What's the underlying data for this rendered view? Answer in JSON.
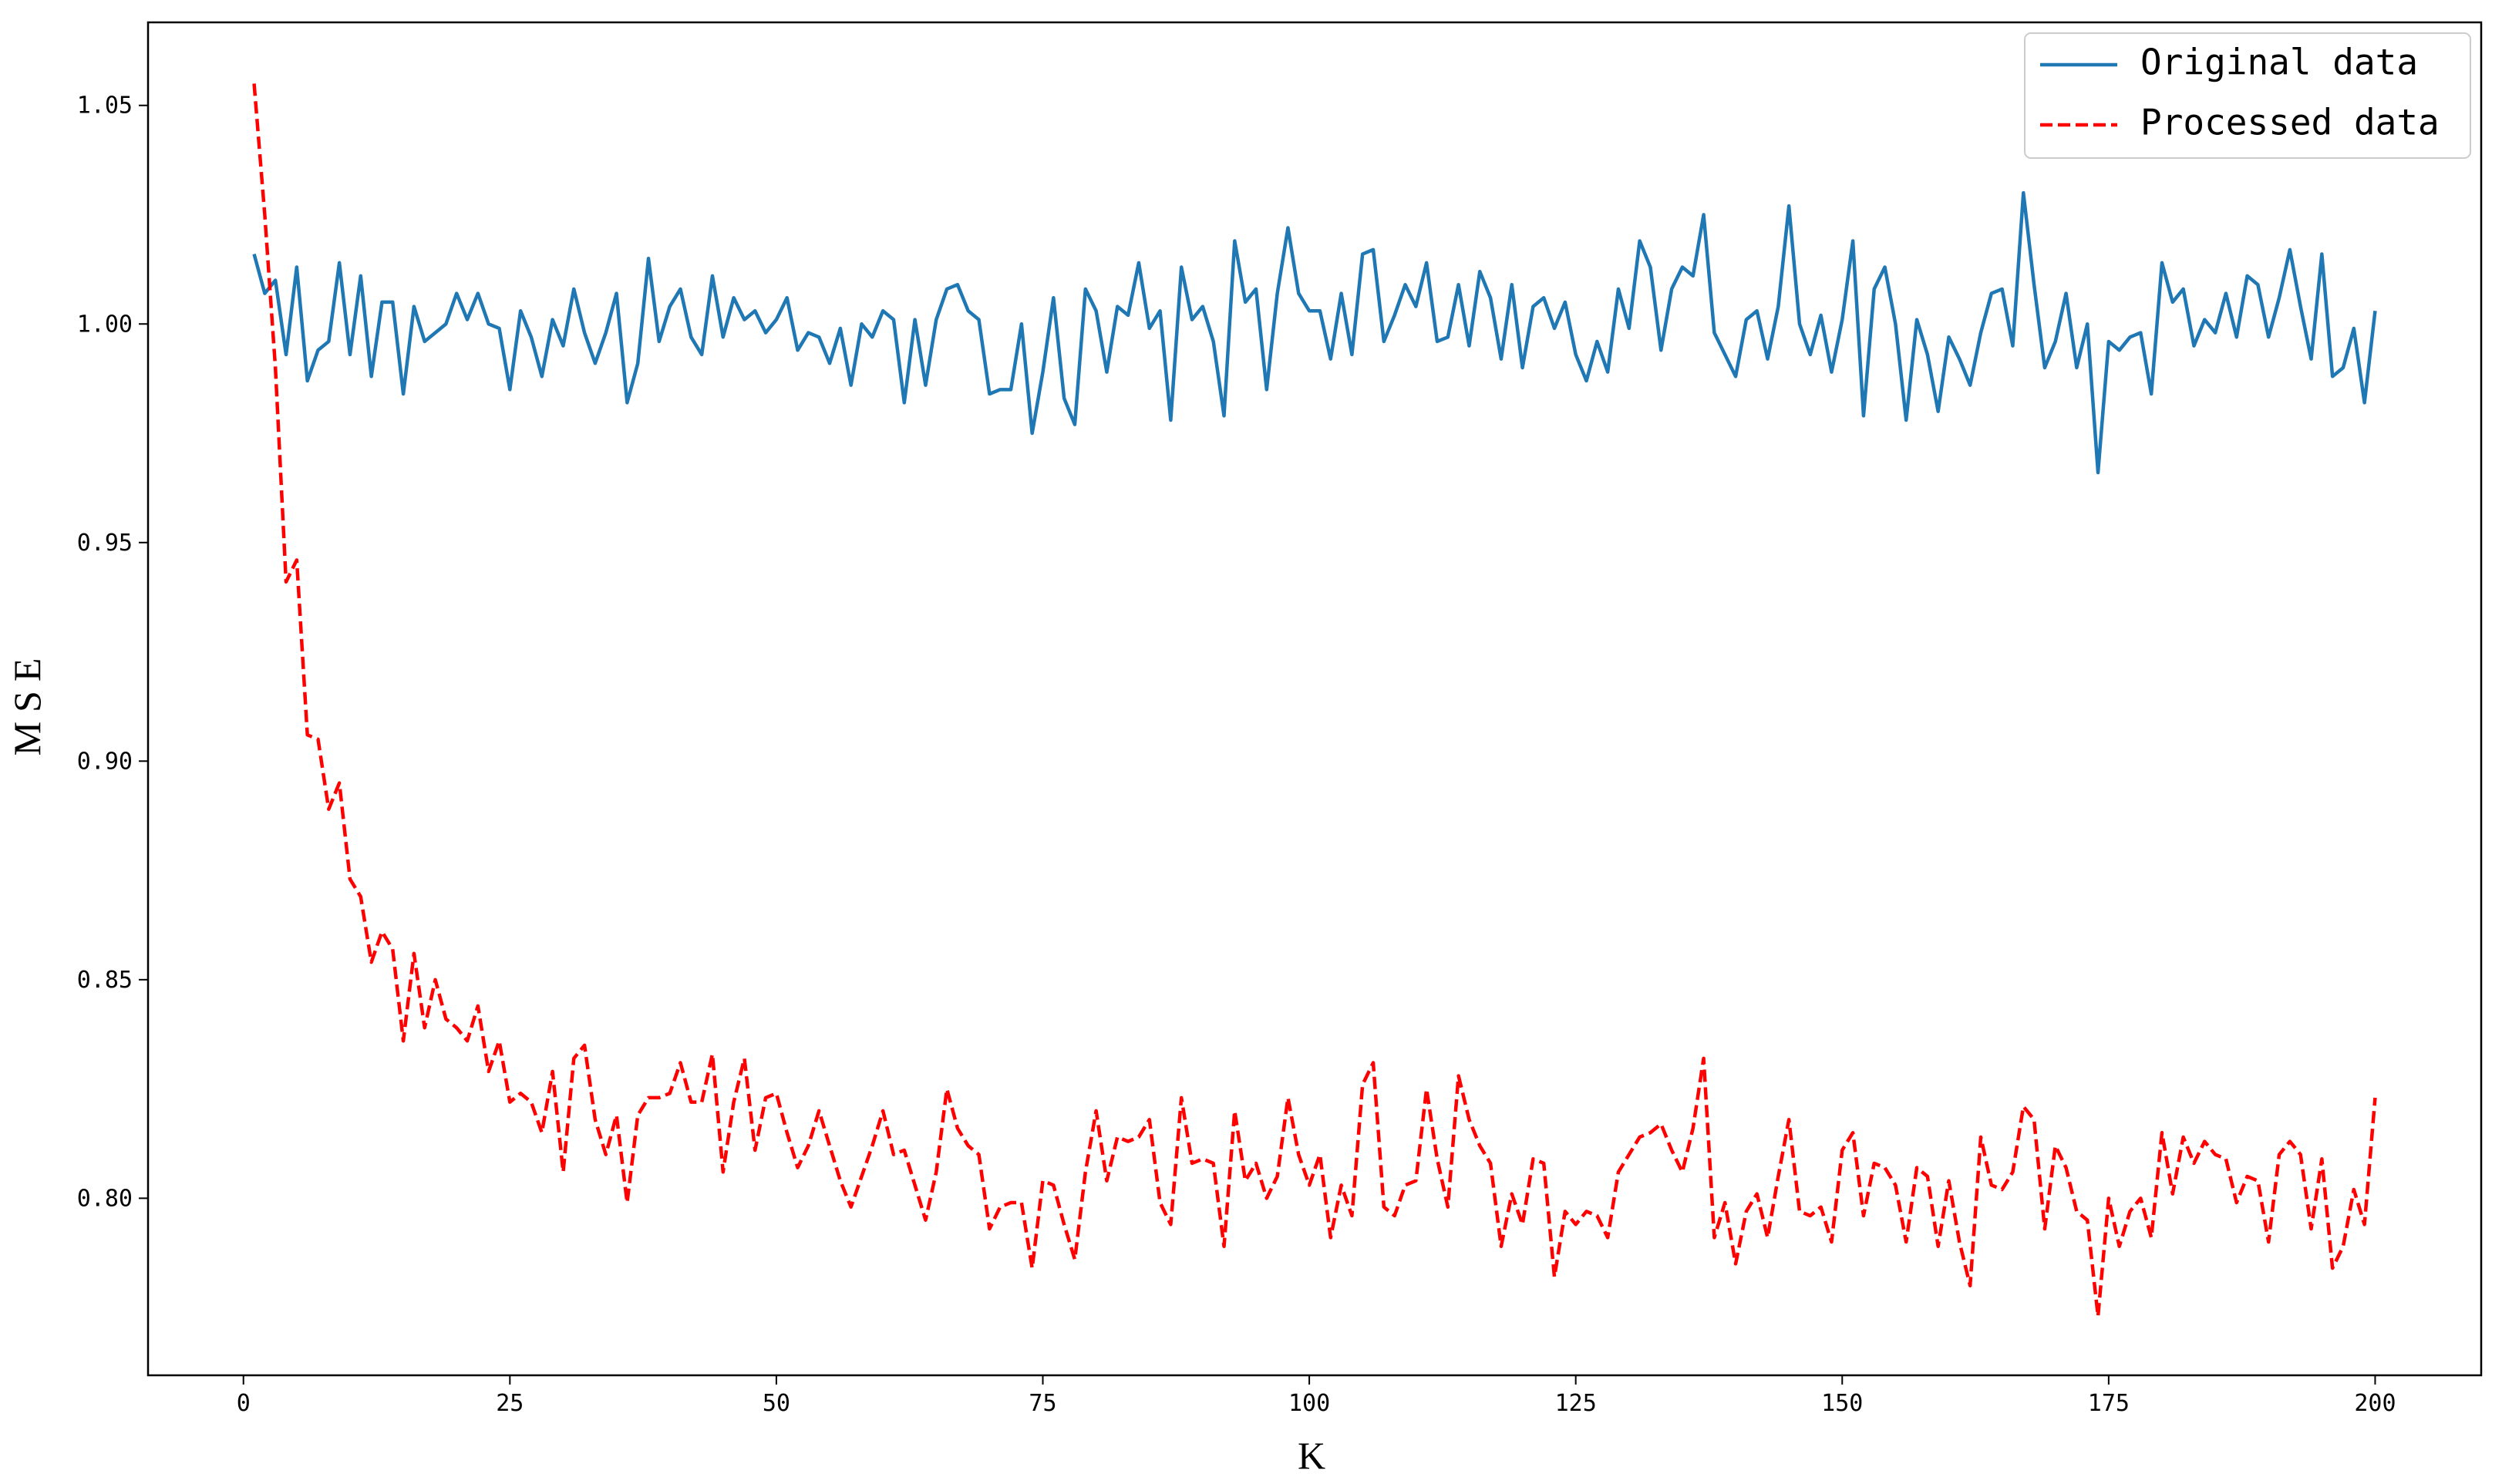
{
  "chart_data": {
    "type": "line",
    "xlabel": "K",
    "ylabel": "MSE",
    "x": [
      1,
      2,
      3,
      4,
      5,
      6,
      7,
      8,
      9,
      10,
      11,
      12,
      13,
      14,
      15,
      16,
      17,
      18,
      19,
      20,
      21,
      22,
      23,
      24,
      25,
      26,
      27,
      28,
      29,
      30,
      31,
      32,
      33,
      34,
      35,
      36,
      37,
      38,
      39,
      40,
      41,
      42,
      43,
      44,
      45,
      46,
      47,
      48,
      49,
      50,
      51,
      52,
      53,
      54,
      55,
      56,
      57,
      58,
      59,
      60,
      61,
      62,
      63,
      64,
      65,
      66,
      67,
      68,
      69,
      70,
      71,
      72,
      73,
      74,
      75,
      76,
      77,
      78,
      79,
      80,
      81,
      82,
      83,
      84,
      85,
      86,
      87,
      88,
      89,
      90,
      91,
      92,
      93,
      94,
      95,
      96,
      97,
      98,
      99,
      100,
      101,
      102,
      103,
      104,
      105,
      106,
      107,
      108,
      109,
      110,
      111,
      112,
      113,
      114,
      115,
      116,
      117,
      118,
      119,
      120,
      121,
      122,
      123,
      124,
      125,
      126,
      127,
      128,
      129,
      130,
      131,
      132,
      133,
      134,
      135,
      136,
      137,
      138,
      139,
      140,
      141,
      142,
      143,
      144,
      145,
      146,
      147,
      148,
      149,
      150,
      151,
      152,
      153,
      154,
      155,
      156,
      157,
      158,
      159,
      160,
      161,
      162,
      163,
      164,
      165,
      166,
      167,
      168,
      169,
      170,
      171,
      172,
      173,
      174,
      175,
      176,
      177,
      178,
      179,
      180,
      181,
      182,
      183,
      184,
      185,
      186,
      187,
      188,
      189,
      190,
      191,
      192,
      193,
      194,
      195,
      196,
      197,
      198,
      199,
      200
    ],
    "series": [
      {
        "name": "Original data",
        "color": "#1f77b4",
        "dash": false,
        "values": [
          1.016,
          1.007,
          1.01,
          0.993,
          1.013,
          0.987,
          0.994,
          0.996,
          1.014,
          0.993,
          1.011,
          0.988,
          1.005,
          1.005,
          0.984,
          1.004,
          0.996,
          0.998,
          1.0,
          1.007,
          1.001,
          1.007,
          1.0,
          0.999,
          0.985,
          1.003,
          0.997,
          0.988,
          1.001,
          0.995,
          1.008,
          0.998,
          0.991,
          0.998,
          1.007,
          0.982,
          0.991,
          1.015,
          0.996,
          1.004,
          1.008,
          0.997,
          0.993,
          1.011,
          0.997,
          1.006,
          1.001,
          1.003,
          0.998,
          1.001,
          1.006,
          0.994,
          0.998,
          0.997,
          0.991,
          0.999,
          0.986,
          1.0,
          0.997,
          1.003,
          1.001,
          0.982,
          1.001,
          0.986,
          1.001,
          1.008,
          1.009,
          1.003,
          1.001,
          0.984,
          0.985,
          0.985,
          1.0,
          0.975,
          0.989,
          1.006,
          0.983,
          0.977,
          1.008,
          1.003,
          0.989,
          1.004,
          1.002,
          1.014,
          0.999,
          1.003,
          0.978,
          1.013,
          1.001,
          1.004,
          0.996,
          0.979,
          1.019,
          1.005,
          1.008,
          0.985,
          1.007,
          1.022,
          1.007,
          1.003,
          1.003,
          0.992,
          1.007,
          0.993,
          1.016,
          1.017,
          0.996,
          1.002,
          1.009,
          1.004,
          1.014,
          0.996,
          0.997,
          1.009,
          0.995,
          1.012,
          1.006,
          0.992,
          1.009,
          0.99,
          1.004,
          1.006,
          0.999,
          1.005,
          0.993,
          0.987,
          0.996,
          0.989,
          1.008,
          0.999,
          1.019,
          1.013,
          0.994,
          1.008,
          1.013,
          1.011,
          1.025,
          0.998,
          0.993,
          0.988,
          1.001,
          1.003,
          0.992,
          1.004,
          1.027,
          1.0,
          0.993,
          1.002,
          0.989,
          1.001,
          1.019,
          0.979,
          1.008,
          1.013,
          1.0,
          0.978,
          1.001,
          0.993,
          0.98,
          0.997,
          0.992,
          0.986,
          0.998,
          1.007,
          1.008,
          0.995,
          1.03,
          1.009,
          0.99,
          0.996,
          1.007,
          0.99,
          1.0,
          0.966,
          0.996,
          0.994,
          0.997,
          0.998,
          0.984,
          1.014,
          1.005,
          1.008,
          0.995,
          1.001,
          0.998,
          1.007,
          0.997,
          1.011,
          1.009,
          0.997,
          1.006,
          1.017,
          1.004,
          0.992,
          1.016,
          0.988,
          0.99,
          0.999,
          0.982,
          1.003
        ]
      },
      {
        "name": "Processed data",
        "color": "#ff0000",
        "dash": true,
        "values": [
          1.055,
          1.025,
          0.99,
          0.941,
          0.946,
          0.906,
          0.905,
          0.889,
          0.895,
          0.873,
          0.869,
          0.854,
          0.861,
          0.857,
          0.836,
          0.856,
          0.839,
          0.85,
          0.841,
          0.839,
          0.836,
          0.844,
          0.829,
          0.836,
          0.822,
          0.824,
          0.822,
          0.815,
          0.829,
          0.806,
          0.832,
          0.835,
          0.818,
          0.81,
          0.819,
          0.799,
          0.819,
          0.823,
          0.823,
          0.824,
          0.831,
          0.822,
          0.822,
          0.833,
          0.806,
          0.822,
          0.832,
          0.811,
          0.823,
          0.824,
          0.815,
          0.807,
          0.812,
          0.82,
          0.812,
          0.804,
          0.798,
          0.805,
          0.812,
          0.82,
          0.81,
          0.811,
          0.803,
          0.795,
          0.806,
          0.825,
          0.816,
          0.812,
          0.81,
          0.793,
          0.798,
          0.799,
          0.799,
          0.784,
          0.804,
          0.803,
          0.794,
          0.786,
          0.806,
          0.82,
          0.804,
          0.814,
          0.813,
          0.814,
          0.818,
          0.799,
          0.794,
          0.823,
          0.808,
          0.809,
          0.808,
          0.789,
          0.82,
          0.804,
          0.808,
          0.8,
          0.805,
          0.823,
          0.81,
          0.803,
          0.81,
          0.791,
          0.803,
          0.796,
          0.826,
          0.831,
          0.798,
          0.796,
          0.803,
          0.804,
          0.825,
          0.809,
          0.798,
          0.828,
          0.818,
          0.812,
          0.808,
          0.789,
          0.801,
          0.794,
          0.809,
          0.808,
          0.782,
          0.797,
          0.794,
          0.797,
          0.796,
          0.791,
          0.806,
          0.81,
          0.814,
          0.815,
          0.817,
          0.811,
          0.806,
          0.816,
          0.832,
          0.791,
          0.799,
          0.785,
          0.797,
          0.801,
          0.791,
          0.805,
          0.818,
          0.797,
          0.796,
          0.798,
          0.79,
          0.811,
          0.815,
          0.796,
          0.808,
          0.807,
          0.803,
          0.79,
          0.807,
          0.805,
          0.789,
          0.804,
          0.79,
          0.78,
          0.814,
          0.803,
          0.802,
          0.806,
          0.821,
          0.818,
          0.793,
          0.812,
          0.807,
          0.797,
          0.795,
          0.773,
          0.8,
          0.789,
          0.797,
          0.8,
          0.791,
          0.815,
          0.801,
          0.814,
          0.808,
          0.813,
          0.81,
          0.809,
          0.799,
          0.805,
          0.804,
          0.79,
          0.81,
          0.813,
          0.81,
          0.793,
          0.809,
          0.784,
          0.789,
          0.802,
          0.794,
          0.823
        ]
      }
    ],
    "xlim": [
      -8.95,
      209.95
    ],
    "xticks": [
      0,
      25,
      50,
      75,
      100,
      125,
      150,
      175,
      200
    ],
    "ylim": [
      0.7595,
      1.069
    ],
    "yticks": [
      {
        "value": 0.8,
        "label": "0.80"
      },
      {
        "value": 0.85,
        "label": "0.85"
      },
      {
        "value": 0.9,
        "label": "0.90"
      },
      {
        "value": 0.95,
        "label": "0.95"
      },
      {
        "value": 1.0,
        "label": "1.00"
      },
      {
        "value": 1.05,
        "label": "1.05"
      }
    ],
    "grid": false,
    "legend": "upper right"
  }
}
